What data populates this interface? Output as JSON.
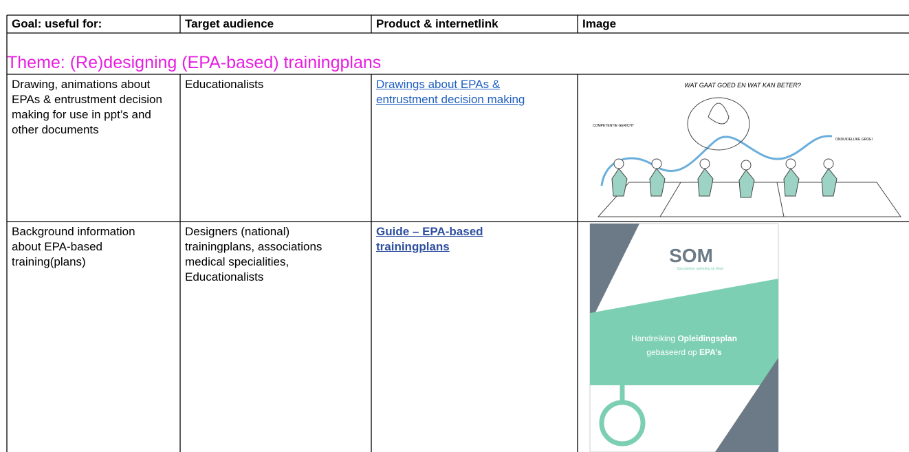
{
  "table": {
    "header": [
      "Goal: useful for:",
      "Target audience",
      "Product & internetlink",
      "Image"
    ],
    "theme": "Theme: (Re)designing (EPA-based) trainingplans",
    "rows": [
      [
        "Drawing, animations about EPAs & entrustment decision making for use in ppt’s and other documents",
        "Educationalists",
        "Drawings about EPAs & entrustment decision making"
      ],
      [
        "Background information about EPA-based training(plans)",
        "Designers (national) trainingplans, associations medical specialities, Educationalists",
        "Guide – EPA-based trainingplans"
      ]
    ]
  },
  "drawing": {
    "title": "WAT GAAT GOED EN WAT KAN BETER?",
    "left_label": "COMPETENTIE GERICHT",
    "right_label": "ONDUIDELIJKE GROEI"
  },
  "cover": {
    "logo": "SOM",
    "logo_sub": "Specialisten opleiding op Maat",
    "line1_a": "Handreiking ",
    "line1_b": "Opleidingsplan",
    "line2_a": "gebaseerd op ",
    "line2_b": "EPA’s"
  }
}
